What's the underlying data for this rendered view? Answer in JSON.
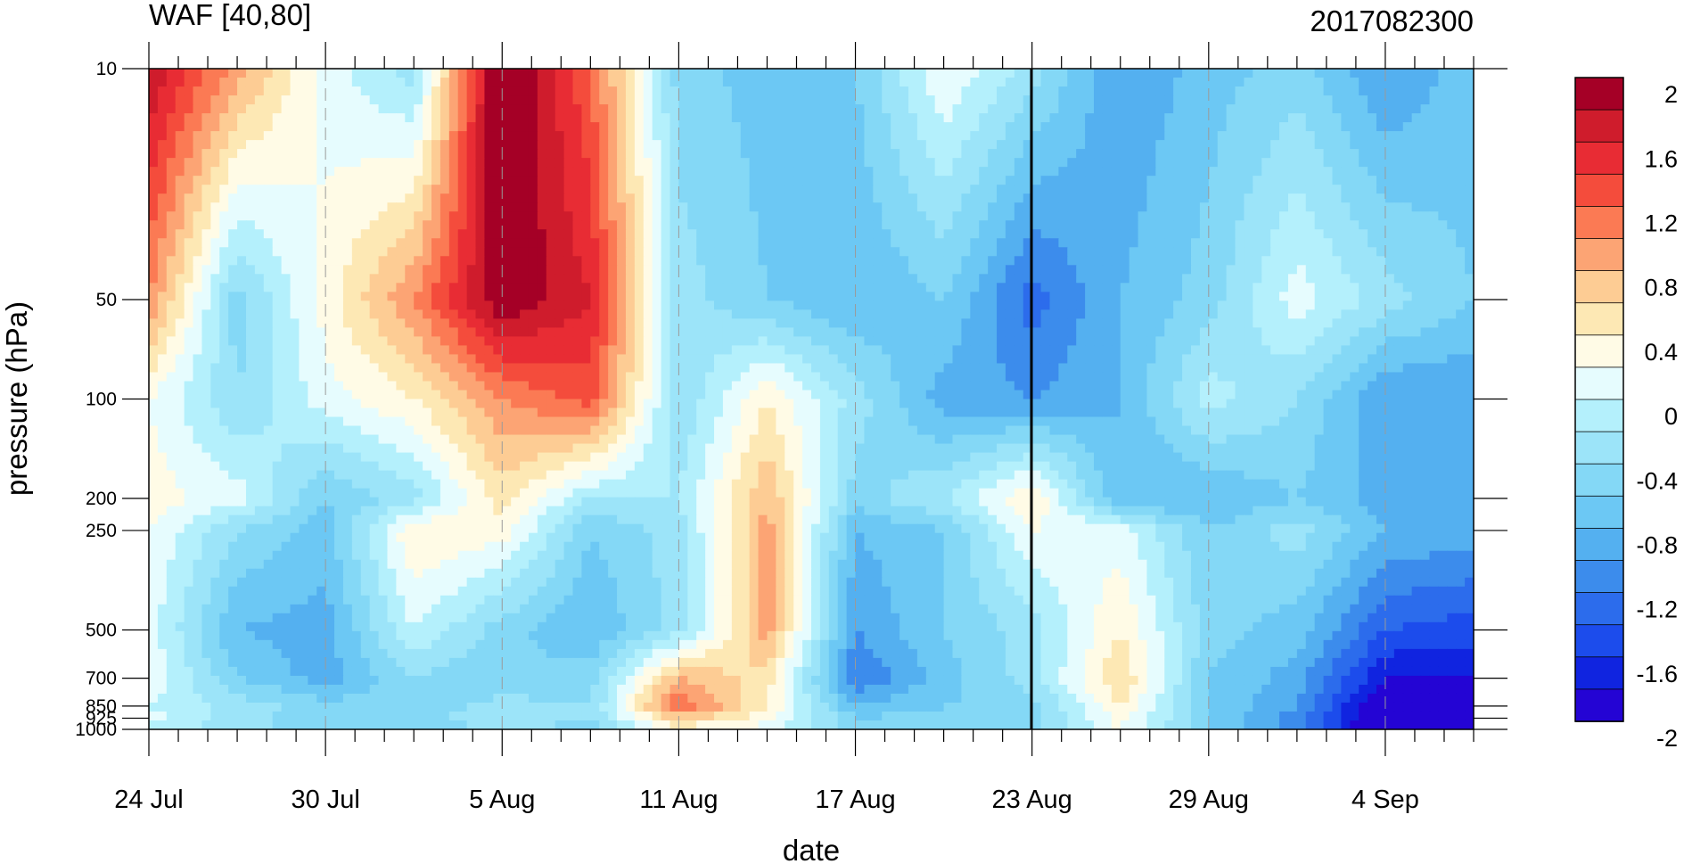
{
  "chart_data": {
    "type": "heatmap",
    "title": "WAF [40,80]",
    "subtitle": "2017082300",
    "xlabel": "date",
    "ylabel": "pressure (hPa)",
    "x_tick_labels": [
      "24 Jul",
      "30 Jul",
      "5 Aug",
      "11 Aug",
      "17 Aug",
      "23 Aug",
      "29 Aug",
      "4 Sep"
    ],
    "x_days": [
      0,
      3,
      6,
      9,
      12,
      15,
      18,
      21,
      24,
      27,
      30,
      33,
      36,
      39,
      42,
      45
    ],
    "y_levels": [
      10,
      50,
      100,
      200,
      250,
      500,
      700,
      850,
      925,
      1000
    ],
    "y_tick_labels": [
      "10",
      "50",
      "100",
      "200",
      "250",
      "500",
      "700",
      "850",
      "925",
      "1000"
    ],
    "y_scale": "log",
    "marked_date": "23 Aug",
    "values": [
      [
        1.8,
        0.9,
        0.1,
        -0.3,
        2.2,
        1.2,
        -0.5,
        -0.7,
        -0.6,
        0.2,
        -0.3,
        -1.0,
        -0.7,
        -0.5,
        -1.0,
        -0.7
      ],
      [
        1.0,
        -0.5,
        0.3,
        1.0,
        2.0,
        1.6,
        -0.3,
        -0.6,
        -0.8,
        -0.6,
        -1.3,
        -0.8,
        -0.5,
        0.1,
        -0.3,
        -0.6
      ],
      [
        0.2,
        -0.4,
        0.1,
        0.4,
        1.0,
        1.3,
        -0.4,
        0.4,
        -0.3,
        -0.9,
        -1.0,
        -0.8,
        -0.1,
        -0.4,
        -1.0,
        -1.0
      ],
      [
        0.3,
        0.1,
        -0.6,
        -0.3,
        0.5,
        -0.2,
        -0.2,
        0.8,
        -0.5,
        -0.2,
        0.4,
        -0.8,
        -0.8,
        -0.6,
        -0.9,
        -0.9
      ],
      [
        0.2,
        -0.4,
        -0.7,
        0.4,
        0.3,
        -0.6,
        -0.3,
        0.9,
        -0.8,
        -0.6,
        0.2,
        0.1,
        -0.6,
        -0.3,
        -0.8,
        -0.9
      ],
      [
        0.1,
        -0.8,
        -0.9,
        0.0,
        -0.5,
        -0.8,
        -0.3,
        0.9,
        -1.0,
        -0.6,
        -0.3,
        0.4,
        -0.5,
        -0.7,
        -1.4,
        -1.5
      ],
      [
        0.2,
        -0.6,
        -0.9,
        -0.4,
        -0.6,
        -0.5,
        0.8,
        0.5,
        -1.2,
        -0.7,
        -0.3,
        0.6,
        -0.6,
        -0.9,
        -1.8,
        -1.8
      ],
      [
        0.0,
        -0.3,
        -0.5,
        -0.6,
        -0.3,
        -0.4,
        1.2,
        0.4,
        -0.8,
        -0.6,
        -0.5,
        0.4,
        -0.6,
        -1.0,
        -2.1,
        -2.1
      ],
      [
        0.1,
        -0.3,
        -0.6,
        -0.5,
        -0.2,
        -0.4,
        0.7,
        0.3,
        -0.6,
        -0.5,
        -0.5,
        0.3,
        -0.6,
        -1.1,
        -2.2,
        -2.2
      ],
      [
        -0.1,
        -0.3,
        -0.5,
        -0.5,
        -0.4,
        -0.5,
        0.3,
        0.1,
        -0.5,
        -0.5,
        -0.5,
        0.2,
        -0.6,
        -1.1,
        -2.2,
        -2.2
      ]
    ],
    "colorbar": {
      "labels": [
        "2",
        "1.6",
        "1.2",
        "0.8",
        "0.4",
        "0",
        "-0.4",
        "-0.8",
        "-1.2",
        "-1.6",
        "-2"
      ],
      "colors": [
        "#a50026",
        "#cf1c2c",
        "#e82c34",
        "#f44c3c",
        "#fb7a54",
        "#fca474",
        "#fdcc94",
        "#fde8b4",
        "#fffbe6",
        "#e6fcfe",
        "#b4f0fc",
        "#9ce4f9",
        "#84d8f6",
        "#6cc8f4",
        "#54b0f0",
        "#3c8cec",
        "#2c6cec",
        "#1c4cec",
        "#1024e0",
        "#2404d4"
      ]
    },
    "grid": "dashed vertical lines at date ticks"
  }
}
